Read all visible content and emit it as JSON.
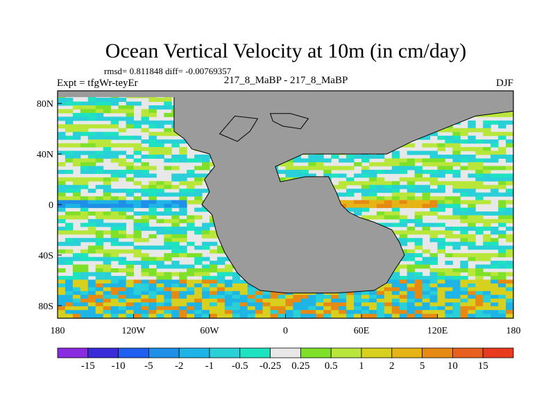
{
  "chart_data": {
    "type": "heatmap",
    "title": "Ocean Vertical Velocity at 10m (in cm/day)",
    "stats": "rmsd= 0.811848 diff= -0.00769357",
    "left_label": "Expt = tfgWr-teyEr",
    "center_label": "217_8_MaBP - 217_8_MaBP",
    "right_label": "DJF",
    "x_ticks": [
      {
        "label": "180",
        "lon": -180
      },
      {
        "label": "120W",
        "lon": -120
      },
      {
        "label": "60W",
        "lon": -60
      },
      {
        "label": "0",
        "lon": 0
      },
      {
        "label": "60E",
        "lon": 60
      },
      {
        "label": "120E",
        "lon": 120
      },
      {
        "label": "180",
        "lon": 180
      }
    ],
    "y_ticks": [
      {
        "label": "80N",
        "lat": 80
      },
      {
        "label": "40N",
        "lat": 40
      },
      {
        "label": "0",
        "lat": 0
      },
      {
        "label": "40S",
        "lat": -40
      },
      {
        "label": "80S",
        "lat": -80
      }
    ],
    "xlim": [
      -180,
      180
    ],
    "ylim": [
      -90,
      90
    ],
    "colorbar": {
      "levels": [
        "-15",
        "-10",
        "-5",
        "-2",
        "-1",
        "-0.5",
        "-0.25",
        "0.25",
        "0.5",
        "1",
        "2",
        "5",
        "10",
        "15"
      ],
      "colors": [
        "#8a2be2",
        "#3a2bd8",
        "#1e5ef0",
        "#1f8fe8",
        "#1eb4e6",
        "#2ad0d8",
        "#1ee3c0",
        "#e8e8e8",
        "#7fe02a",
        "#b8e63a",
        "#d8d01e",
        "#e6b414",
        "#e68a14",
        "#e8601e",
        "#e83a1e"
      ]
    },
    "land_color": "#9b9b9b",
    "field_pattern": "zonal bands of alternating upwelling/downwelling; strong negative band along equator in Pacific, positive (orange) band along equatorial Indian ocean; strong mixed values around Southern Ocean"
  }
}
